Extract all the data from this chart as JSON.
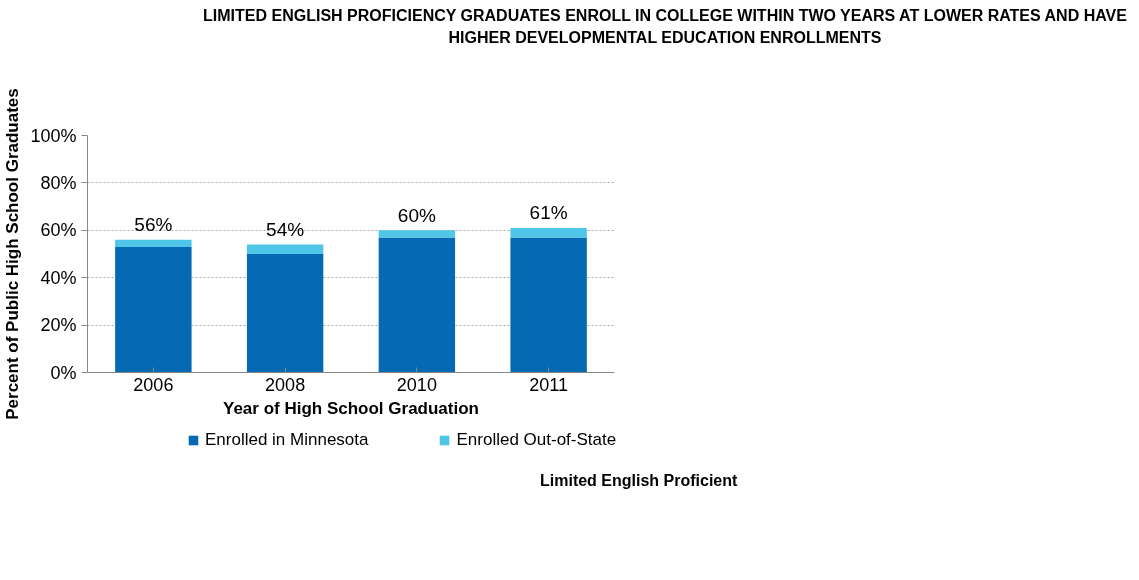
{
  "chart_data": {
    "type": "bar",
    "stacked": true,
    "title": "LIMITED ENGLISH PROFICIENCY GRADUATES ENROLL IN COLLEGE WITHIN TWO YEARS AT LOWER RATES AND HAVE HIGHER DEVELOPMENTAL EDUCATION ENROLLMENTS",
    "xlabel": "Year of High School Graduation",
    "ylabel": "Percent of Public High School Graduates",
    "categories": [
      "2006",
      "2008",
      "2010",
      "2011"
    ],
    "series": [
      {
        "name": "Enrolled in Minnesota",
        "color": "#0569b3",
        "values": [
          53,
          50,
          57,
          57
        ]
      },
      {
        "name": "Enrolled Out-of-State",
        "color": "#4fc6e8",
        "values": [
          3,
          4,
          3,
          4
        ]
      }
    ],
    "totals": [
      "56%",
      "54%",
      "60%",
      "61%"
    ],
    "ylim": [
      0,
      100
    ],
    "yticks": [
      {
        "value": 0,
        "label": "0%"
      },
      {
        "value": 20,
        "label": "20%"
      },
      {
        "value": 40,
        "label": "40%"
      },
      {
        "value": 60,
        "label": "60%"
      },
      {
        "value": 80,
        "label": "80%"
      },
      {
        "value": 100,
        "label": "100%"
      }
    ],
    "grid": "y",
    "legend": "bottom",
    "annotations": [
      "Limited English Proficient"
    ]
  }
}
